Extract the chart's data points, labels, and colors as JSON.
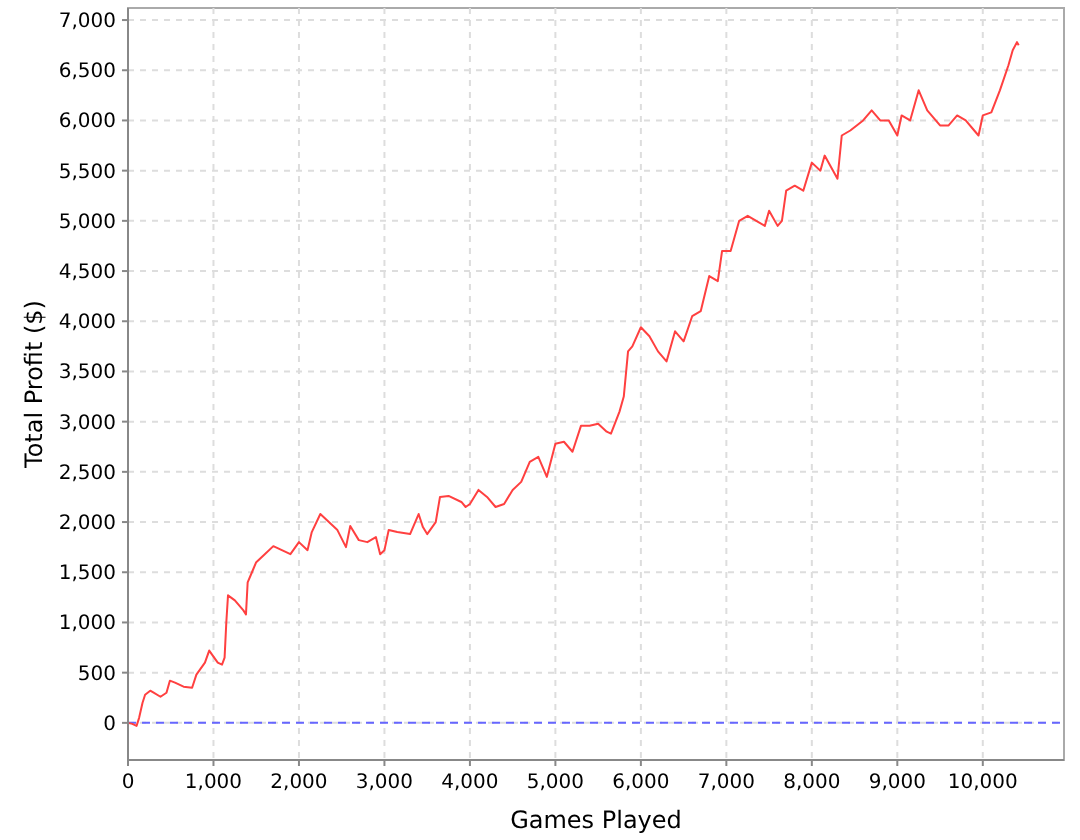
{
  "chart_data": {
    "type": "line",
    "xlabel": "Games Played",
    "ylabel": "Total Profit ($)",
    "xlim": [
      0,
      10950
    ],
    "ylim": [
      -370,
      7120
    ],
    "xticks": [
      {
        "value": 0,
        "label": "0"
      },
      {
        "value": 1000,
        "label": "1,000"
      },
      {
        "value": 2000,
        "label": "2,000"
      },
      {
        "value": 3000,
        "label": "3,000"
      },
      {
        "value": 4000,
        "label": "4,000"
      },
      {
        "value": 5000,
        "label": "5,000"
      },
      {
        "value": 6000,
        "label": "6,000"
      },
      {
        "value": 7000,
        "label": "7,000"
      },
      {
        "value": 8000,
        "label": "8,000"
      },
      {
        "value": 9000,
        "label": "9,000"
      },
      {
        "value": 10000,
        "label": "10,000"
      }
    ],
    "yticks": [
      0,
      500,
      {
        "value": 1000,
        "label": "1,000"
      },
      {
        "value": 1500,
        "label": "1,500"
      },
      {
        "value": 2000,
        "label": "2,000"
      },
      {
        "value": 2500,
        "label": "2,500"
      },
      {
        "value": 3000,
        "label": "3,000"
      },
      {
        "value": 3500,
        "label": "3,500"
      },
      {
        "value": 4000,
        "label": "4,000"
      },
      {
        "value": 4500,
        "label": "4,500"
      },
      {
        "value": 5000,
        "label": "5,000"
      },
      {
        "value": 5500,
        "label": "5,500"
      },
      {
        "value": 6000,
        "label": "6,000"
      },
      {
        "value": 6500,
        "label": "6,500"
      },
      {
        "value": 7000,
        "label": "7,000"
      }
    ],
    "grid": true,
    "ref_lines": [
      {
        "axis": "y",
        "value": 0,
        "color": "#6666ff",
        "line_style": "dashed"
      }
    ],
    "x": [
      0,
      50,
      100,
      130,
      170,
      200,
      260,
      300,
      380,
      450,
      490,
      550,
      650,
      750,
      800,
      900,
      950,
      1000,
      1050,
      1100,
      1130,
      1150,
      1170,
      1250,
      1350,
      1380,
      1400,
      1450,
      1500,
      1600,
      1700,
      1800,
      1900,
      2000,
      2100,
      2150,
      2250,
      2350,
      2450,
      2550,
      2600,
      2700,
      2800,
      2900,
      2950,
      3000,
      3050,
      3150,
      3300,
      3400,
      3450,
      3500,
      3600,
      3650,
      3750,
      3900,
      3950,
      4000,
      4100,
      4200,
      4300,
      4400,
      4500,
      4600,
      4700,
      4800,
      4850,
      4900,
      5000,
      5100,
      5200,
      5300,
      5400,
      5500,
      5600,
      5650,
      5750,
      5800,
      5850,
      5900,
      6000,
      6100,
      6200,
      6300,
      6400,
      6500,
      6600,
      6700,
      6800,
      6900,
      6950,
      7050,
      7150,
      7250,
      7350,
      7450,
      7500,
      7600,
      7650,
      7700,
      7800,
      7900,
      8000,
      8100,
      8150,
      8300,
      8350,
      8450,
      8600,
      8700,
      8800,
      8900,
      9000,
      9050,
      9150,
      9250,
      9350,
      9500,
      9600,
      9700,
      9800,
      9900,
      9950,
      10000,
      10100,
      10200,
      10300,
      10350,
      10400,
      10420
    ],
    "series": [
      {
        "color": "#ff4040",
        "values": [
          0,
          -10,
          -30,
          50,
          200,
          280,
          320,
          300,
          260,
          300,
          420,
          400,
          360,
          350,
          480,
          600,
          720,
          660,
          600,
          580,
          650,
          1000,
          1270,
          1220,
          1120,
          1080,
          1400,
          1500,
          1600,
          1680,
          1760,
          1720,
          1680,
          1800,
          1720,
          1900,
          2080,
          2000,
          1920,
          1750,
          1960,
          1820,
          1800,
          1850,
          1680,
          1720,
          1920,
          1900,
          1880,
          2080,
          1950,
          1880,
          2000,
          2250,
          2260,
          2200,
          2150,
          2180,
          2320,
          2250,
          2150,
          2180,
          2320,
          2400,
          2600,
          2650,
          2550,
          2450,
          2780,
          2800,
          2700,
          2960,
          2960,
          2980,
          2900,
          2880,
          3100,
          3250,
          3700,
          3750,
          3940,
          3850,
          3700,
          3600,
          3900,
          3800,
          4050,
          4100,
          4450,
          4400,
          4700,
          4700,
          5000,
          5050,
          5000,
          4950,
          5100,
          4950,
          5000,
          5300,
          5350,
          5300,
          5580,
          5500,
          5650,
          5420,
          5850,
          5900,
          6000,
          6100,
          6000,
          6000,
          5850,
          6050,
          6000,
          6300,
          6100,
          5950,
          5950,
          6050,
          6000,
          5900,
          5850,
          6050,
          6080,
          6300,
          6550,
          6700,
          6780,
          6750
        ]
      }
    ]
  }
}
